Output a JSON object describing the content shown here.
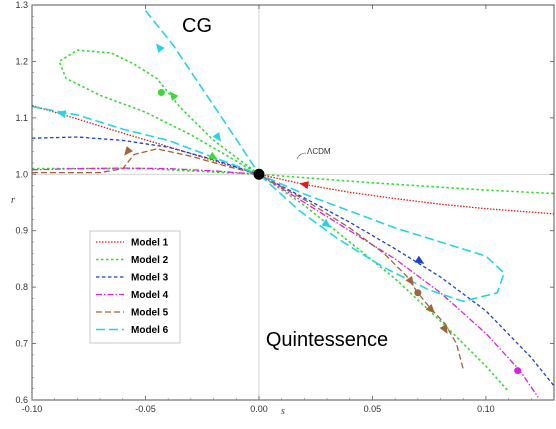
{
  "chart_data": {
    "type": "line",
    "title": "",
    "xlabel": "s",
    "ylabel": "r",
    "xlim": [
      -0.1,
      0.13
    ],
    "ylim": [
      0.6,
      1.3
    ],
    "xticks": [
      "-0.10",
      "-0.05",
      "0.00",
      "0.05",
      "0.10"
    ],
    "yticks": [
      "0.6",
      "0.7",
      "0.8",
      "0.9",
      "1.0",
      "1.1",
      "1.2",
      "1.3"
    ],
    "xtick_values": [
      -0.1,
      -0.05,
      0.0,
      0.05,
      0.1
    ],
    "ytick_values": [
      0.6,
      0.7,
      0.8,
      0.9,
      1.0,
      1.1,
      1.2,
      1.3
    ],
    "grid": false,
    "legend_position": "lower-left",
    "annotations": [
      {
        "text": "CG",
        "x": -0.0375,
        "y": 1.255
      },
      {
        "text": "Quintessence",
        "x": 0.05,
        "y": 0.675
      },
      {
        "text": "ΛCDM",
        "x": 0.0155,
        "y": 1.035
      }
    ],
    "fixed_point": {
      "label": "ΛCDM",
      "s": 0.0,
      "r": 1.0,
      "color": "#000000"
    },
    "series": [
      {
        "name": "Model 1",
        "color": "#e31a1c",
        "dash": "1.5,1.5",
        "width": 1.3,
        "points": [
          [
            -0.1,
            1.122
          ],
          [
            -0.08,
            1.098
          ],
          [
            -0.06,
            1.073
          ],
          [
            -0.04,
            1.049
          ],
          [
            -0.02,
            1.024
          ],
          [
            0,
            1.0
          ],
          [
            0.02,
            0.982
          ],
          [
            0.04,
            0.968
          ],
          [
            0.06,
            0.957
          ],
          [
            0.08,
            0.947
          ],
          [
            0.1,
            0.939
          ],
          [
            0.13,
            0.93
          ]
        ],
        "arrows": [
          {
            "s": 0.02,
            "r": 0.982,
            "dir": -1
          }
        ],
        "dots": []
      },
      {
        "name": "Model 2",
        "color": "#33dd33",
        "dash": "2.5,2.5",
        "width": 1.6,
        "points": [
          [
            0.0,
            1.0
          ],
          [
            -0.02,
            1.06
          ],
          [
            -0.035,
            1.12
          ],
          [
            -0.045,
            1.17
          ],
          [
            -0.055,
            1.195
          ],
          [
            -0.065,
            1.215
          ],
          [
            -0.08,
            1.22
          ],
          [
            -0.088,
            1.2
          ],
          [
            -0.085,
            1.17
          ],
          [
            -0.07,
            1.14
          ],
          [
            -0.05,
            1.11
          ],
          [
            -0.03,
            1.07
          ],
          [
            -0.015,
            1.035
          ],
          [
            0.0,
            1.0
          ],
          [
            0.02,
            0.945
          ],
          [
            0.04,
            0.88
          ],
          [
            0.06,
            0.815
          ],
          [
            0.08,
            0.74
          ],
          [
            0.1,
            0.66
          ],
          [
            0.11,
            0.615
          ]
        ],
        "extra_lines": [
          [
            [
              -0.1,
              1.01
            ],
            [
              -0.05,
              1.01
            ],
            [
              0,
              1.0
            ],
            [
              0.05,
              0.985
            ],
            [
              0.1,
              0.972
            ],
            [
              0.13,
              0.966
            ]
          ]
        ],
        "arrows": [
          {
            "s": -0.038,
            "r": 1.14,
            "dir": 1
          },
          {
            "s": -0.02,
            "r": 1.03,
            "dir": 1
          }
        ],
        "dots": [
          {
            "s": -0.043,
            "r": 1.145
          }
        ]
      },
      {
        "name": "Model 3",
        "color": "#1f3fd8",
        "dash": "3.5,2.5",
        "width": 1.3,
        "points": [
          [
            -0.1,
            1.064
          ],
          [
            -0.08,
            1.066
          ],
          [
            -0.06,
            1.06
          ],
          [
            -0.04,
            1.048
          ],
          [
            -0.02,
            1.026
          ],
          [
            0,
            1.0
          ],
          [
            0.02,
            0.958
          ],
          [
            0.04,
            0.915
          ],
          [
            0.06,
            0.868
          ],
          [
            0.08,
            0.818
          ],
          [
            0.1,
            0.758
          ],
          [
            0.12,
            0.675
          ],
          [
            0.13,
            0.625
          ]
        ],
        "arrows": [
          {
            "s": 0.071,
            "r": 0.846,
            "dir": 1
          }
        ],
        "dots": []
      },
      {
        "name": "Model 4",
        "color": "#e020e0",
        "dash": "6,2,1.5,2",
        "width": 1.3,
        "points": [
          [
            -0.1,
            1.008
          ],
          [
            -0.08,
            1.01
          ],
          [
            -0.06,
            1.011
          ],
          [
            -0.04,
            1.01
          ],
          [
            -0.02,
            1.006
          ],
          [
            0,
            1.0
          ],
          [
            0.02,
            0.95
          ],
          [
            0.04,
            0.9
          ],
          [
            0.06,
            0.85
          ],
          [
            0.08,
            0.79
          ],
          [
            0.1,
            0.718
          ],
          [
            0.115,
            0.652
          ],
          [
            0.123,
            0.605
          ]
        ],
        "arrows": [],
        "dots": [
          {
            "s": 0.114,
            "r": 0.652
          }
        ]
      },
      {
        "name": "Model 5",
        "color": "#a0643c",
        "dash": "6,3",
        "width": 1.3,
        "points": [
          [
            -0.1,
            1.003
          ],
          [
            -0.07,
            1.003
          ],
          [
            -0.06,
            1.01
          ],
          [
            -0.055,
            1.035
          ],
          [
            -0.045,
            1.045
          ],
          [
            -0.03,
            1.032
          ],
          [
            -0.015,
            1.015
          ],
          [
            0,
            1.0
          ],
          [
            0.02,
            0.955
          ],
          [
            0.04,
            0.905
          ],
          [
            0.055,
            0.86
          ],
          [
            0.065,
            0.82
          ],
          [
            0.07,
            0.79
          ],
          [
            0.075,
            0.765
          ],
          [
            0.082,
            0.735
          ],
          [
            0.087,
            0.7
          ],
          [
            0.09,
            0.655
          ]
        ],
        "arrows": [
          {
            "s": -0.058,
            "r": 1.04,
            "dir": -1
          },
          {
            "s": 0.067,
            "r": 0.81,
            "dir": 1
          },
          {
            "s": 0.076,
            "r": 0.76,
            "dir": 1
          },
          {
            "s": 0.082,
            "r": 0.725,
            "dir": 1
          }
        ],
        "dots": [
          {
            "s": 0.07,
            "r": 0.79
          }
        ]
      },
      {
        "name": "Model 6",
        "color": "#22d6e8",
        "dash": "9,4",
        "width": 1.6,
        "points": [
          [
            -0.05,
            1.29
          ],
          [
            -0.038,
            1.23
          ],
          [
            -0.028,
            1.17
          ],
          [
            -0.018,
            1.11
          ],
          [
            -0.008,
            1.05
          ],
          [
            0,
            1.0
          ],
          [
            0.02,
            0.965
          ],
          [
            0.04,
            0.935
          ],
          [
            0.06,
            0.905
          ],
          [
            0.08,
            0.88
          ],
          [
            0.1,
            0.855
          ],
          [
            0.108,
            0.825
          ],
          [
            0.105,
            0.79
          ],
          [
            0.09,
            0.775
          ],
          [
            0.075,
            0.795
          ],
          [
            0.055,
            0.835
          ],
          [
            0.035,
            0.885
          ],
          [
            0.018,
            0.935
          ],
          [
            0,
            1.0
          ]
        ],
        "extra_lines": [
          [
            [
              -0.1,
              1.12
            ],
            [
              -0.08,
              1.105
            ],
            [
              -0.06,
              1.08
            ],
            [
              -0.04,
              1.06
            ],
            [
              -0.02,
              1.03
            ],
            [
              0,
              1.0
            ]
          ]
        ],
        "arrows": [
          {
            "s": -0.044,
            "r": 1.225,
            "dir": -1
          },
          {
            "s": -0.018,
            "r": 1.065,
            "dir": 1
          },
          {
            "s": -0.087,
            "r": 1.108,
            "dir": -1
          },
          {
            "s": 0.03,
            "r": 0.911,
            "dir": -1
          }
        ],
        "dots": []
      }
    ]
  }
}
